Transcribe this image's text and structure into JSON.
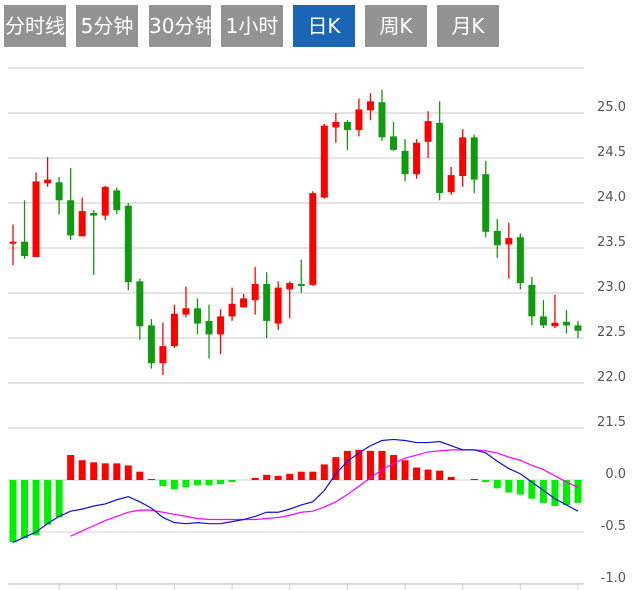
{
  "tabs": [
    {
      "label": "分时线",
      "active": false
    },
    {
      "label": "5分钟",
      "active": false
    },
    {
      "label": "30分钟",
      "active": false
    },
    {
      "label": "1小时",
      "active": false
    },
    {
      "label": "日K",
      "active": true
    },
    {
      "label": "周K",
      "active": false
    },
    {
      "label": "月K",
      "active": false
    }
  ],
  "colors": {
    "up": "#ff0000",
    "down": "#109a10",
    "macd_up": "#ff0000",
    "macd_down": "#00ee00",
    "dif": "#1010e0",
    "dea": "#ff00ff",
    "tab_bg": "#939393",
    "tab_active": "#1a65b5"
  },
  "chart_data": {
    "type": "candlestick",
    "price_axis": {
      "ticks": [
        "25.0",
        "24.5",
        "24.0",
        "23.5",
        "23.0",
        "22.5",
        "22.0",
        "21.5"
      ],
      "values": [
        25.0,
        24.5,
        24.0,
        23.5,
        23.0,
        22.5,
        22.0,
        21.5
      ],
      "range": [
        21.5,
        25.5
      ]
    },
    "macd_axis": {
      "ticks": [
        "0.0",
        "-0.5",
        "-1.0"
      ],
      "values": [
        0,
        -0.5,
        -1.0
      ],
      "range": [
        -1.0,
        0.5
      ]
    },
    "candles_ohlc": [
      [
        23.56,
        23.76,
        23.31,
        23.57
      ],
      [
        23.57,
        24.03,
        23.38,
        23.41
      ],
      [
        23.4,
        24.34,
        23.4,
        24.24
      ],
      [
        24.22,
        24.51,
        24.18,
        24.26
      ],
      [
        24.23,
        24.29,
        23.87,
        24.03
      ],
      [
        24.03,
        24.39,
        23.59,
        23.64
      ],
      [
        23.63,
        24.06,
        23.63,
        23.91
      ],
      [
        23.89,
        23.92,
        23.2,
        23.86
      ],
      [
        23.86,
        24.19,
        23.81,
        24.18
      ],
      [
        24.14,
        24.17,
        23.88,
        23.92
      ],
      [
        23.97,
        24.0,
        23.03,
        23.12
      ],
      [
        23.13,
        23.16,
        22.48,
        22.63
      ],
      [
        22.64,
        22.71,
        22.16,
        22.22
      ],
      [
        22.22,
        22.67,
        22.09,
        22.41
      ],
      [
        22.41,
        22.87,
        22.39,
        22.77
      ],
      [
        22.76,
        23.07,
        22.73,
        22.83
      ],
      [
        22.83,
        22.94,
        22.54,
        22.66
      ],
      [
        22.69,
        22.87,
        22.27,
        22.54
      ],
      [
        22.54,
        22.82,
        22.32,
        22.74
      ],
      [
        22.74,
        23.06,
        22.69,
        22.88
      ],
      [
        22.84,
        22.99,
        22.84,
        22.94
      ],
      [
        22.92,
        23.29,
        22.76,
        23.1
      ],
      [
        23.1,
        23.23,
        22.5,
        22.69
      ],
      [
        22.66,
        23.13,
        22.59,
        23.06
      ],
      [
        23.04,
        23.13,
        22.72,
        23.11
      ],
      [
        23.1,
        23.37,
        23.0,
        23.08
      ],
      [
        23.09,
        24.13,
        23.08,
        24.11
      ],
      [
        24.06,
        24.88,
        24.05,
        24.86
      ],
      [
        24.84,
        25.0,
        24.67,
        24.9
      ],
      [
        24.9,
        24.92,
        24.59,
        24.81
      ],
      [
        24.81,
        25.16,
        24.74,
        25.04
      ],
      [
        25.03,
        25.22,
        24.92,
        25.13
      ],
      [
        25.12,
        25.26,
        24.69,
        24.73
      ],
      [
        24.74,
        24.9,
        24.58,
        24.59
      ],
      [
        24.58,
        24.71,
        24.24,
        24.32
      ],
      [
        24.32,
        24.71,
        24.27,
        24.67
      ],
      [
        24.68,
        25.02,
        24.5,
        24.91
      ],
      [
        24.89,
        25.13,
        24.03,
        24.11
      ],
      [
        24.12,
        24.4,
        24.09,
        24.31
      ],
      [
        24.3,
        24.82,
        24.18,
        24.73
      ],
      [
        24.73,
        24.76,
        24.11,
        24.26
      ],
      [
        24.32,
        24.47,
        23.62,
        23.68
      ],
      [
        23.69,
        23.82,
        23.39,
        23.53
      ],
      [
        23.54,
        23.78,
        23.16,
        23.61
      ],
      [
        23.62,
        23.66,
        23.04,
        23.11
      ],
      [
        23.09,
        23.18,
        22.64,
        22.74
      ],
      [
        22.74,
        22.92,
        22.61,
        22.64
      ],
      [
        22.63,
        22.98,
        22.61,
        22.67
      ],
      [
        22.68,
        22.81,
        22.55,
        22.64
      ],
      [
        22.64,
        22.69,
        22.5,
        22.58
      ]
    ],
    "macd_hist": [
      -0.6,
      -0.56,
      -0.53,
      -0.43,
      -0.36,
      0.24,
      0.19,
      0.17,
      0.16,
      0.16,
      0.14,
      0.08,
      0.01,
      -0.06,
      -0.09,
      -0.07,
      -0.05,
      -0.05,
      -0.04,
      -0.02,
      0.0,
      0.02,
      0.05,
      0.04,
      0.06,
      0.08,
      0.08,
      0.15,
      0.22,
      0.28,
      0.29,
      0.28,
      0.28,
      0.24,
      0.19,
      0.12,
      0.1,
      0.09,
      0.03,
      0.0,
      0.01,
      -0.02,
      -0.08,
      -0.12,
      -0.14,
      -0.18,
      -0.22,
      -0.25,
      -0.24,
      -0.22
    ],
    "dif": [
      -0.6,
      -0.55,
      -0.5,
      -0.42,
      -0.35,
      -0.3,
      -0.28,
      -0.25,
      -0.23,
      -0.19,
      -0.16,
      -0.21,
      -0.27,
      -0.36,
      -0.41,
      -0.42,
      -0.41,
      -0.42,
      -0.42,
      -0.4,
      -0.38,
      -0.35,
      -0.31,
      -0.31,
      -0.28,
      -0.24,
      -0.21,
      -0.1,
      0.06,
      0.18,
      0.26,
      0.33,
      0.38,
      0.39,
      0.38,
      0.36,
      0.36,
      0.37,
      0.33,
      0.29,
      0.29,
      0.26,
      0.18,
      0.11,
      0.06,
      -0.02,
      -0.1,
      -0.18,
      -0.24,
      -0.3
    ],
    "dea": [
      null,
      null,
      null,
      null,
      null,
      -0.54,
      -0.49,
      -0.44,
      -0.39,
      -0.35,
      -0.31,
      -0.29,
      -0.29,
      -0.31,
      -0.33,
      -0.35,
      -0.37,
      -0.38,
      -0.38,
      -0.38,
      -0.38,
      -0.38,
      -0.37,
      -0.36,
      -0.34,
      -0.31,
      -0.3,
      -0.26,
      -0.21,
      -0.14,
      -0.06,
      0.02,
      0.1,
      0.16,
      0.21,
      0.24,
      0.27,
      0.28,
      0.29,
      0.29,
      0.29,
      0.28,
      0.26,
      0.22,
      0.19,
      0.14,
      0.1,
      0.04,
      -0.02,
      -0.07
    ]
  }
}
